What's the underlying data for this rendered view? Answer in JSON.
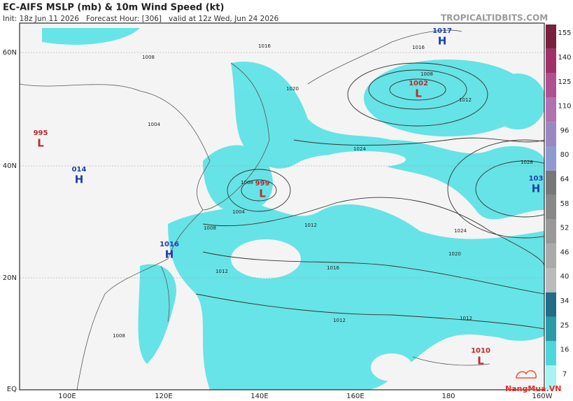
{
  "header": {
    "title": "EC-AIFS MSLP (mb) & 10m Wind Speed (kt)",
    "subtitle": "Init: 18z Jun 11 2026   Forecast Hour: [306]   valid at 12z Wed, Jun 24 2026",
    "site": "TROPICALTIDBITS.COM"
  },
  "axes": {
    "lat_labels": [
      "60N",
      "40N",
      "20N",
      "EQ"
    ],
    "lon_labels": [
      "100E",
      "120E",
      "140E",
      "160E",
      "180",
      "160W"
    ]
  },
  "colorbar": {
    "labels": [
      "155",
      "140",
      "125",
      "110",
      "96",
      "80",
      "64",
      "58",
      "52",
      "46",
      "40",
      "34",
      "25",
      "16",
      "7"
    ]
  },
  "centers": [
    {
      "value": "1017",
      "symbol": "H"
    },
    {
      "value": "1002",
      "symbol": "L"
    },
    {
      "value": "995",
      "symbol": "L"
    },
    {
      "value": "014",
      "symbol": "H"
    },
    {
      "value": "999",
      "symbol": "L"
    },
    {
      "value": "1016",
      "symbol": "H"
    },
    {
      "value": "103",
      "symbol": "H"
    },
    {
      "value": "1010",
      "symbol": "L"
    }
  ],
  "isobar_labels": [
    "1016",
    "1016",
    "1008",
    "1012",
    "1020",
    "1024",
    "1028",
    "1024",
    "1020",
    "1016",
    "1012",
    "1012",
    "1008",
    "1004",
    "1008",
    "1012",
    "1008",
    "1004",
    "1008",
    "1012"
  ],
  "watermark": "NangMua.VN"
}
